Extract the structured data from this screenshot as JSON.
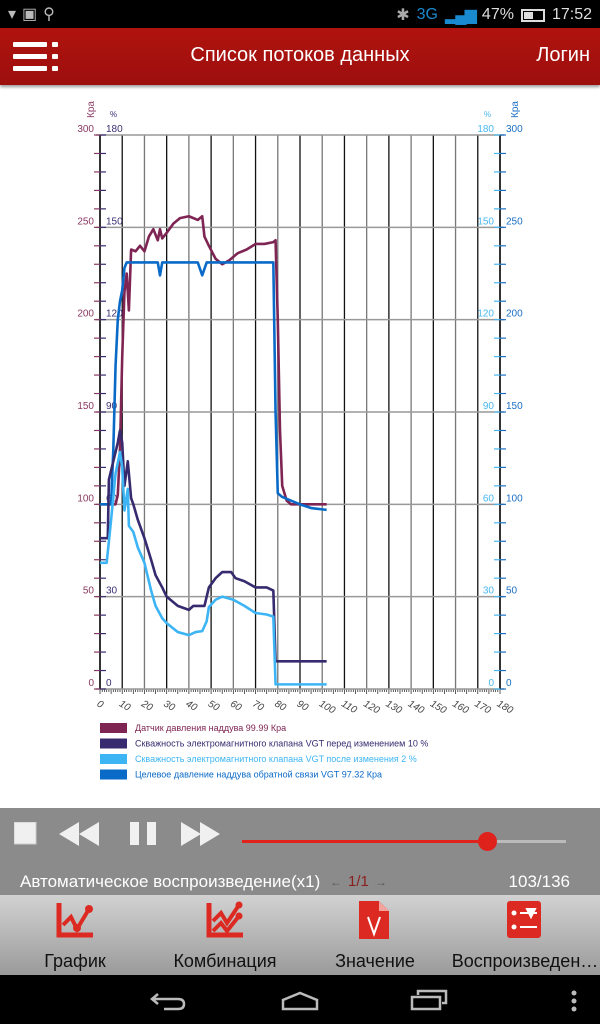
{
  "status_bar": {
    "network": "3G",
    "battery": "47%",
    "time": "17:52",
    "icons": [
      "shield-icon",
      "image-icon",
      "search-icon",
      "bluetooth-icon",
      "signal-icon",
      "battery-icon"
    ]
  },
  "header": {
    "title": "Список потоков данных",
    "login": "Логин",
    "menu_icon": "menu-icon"
  },
  "colors": {
    "header": "#a8120f",
    "accent": "#e0221c",
    "panel": "#8b8b8b"
  },
  "chart_data": {
    "type": "line",
    "left_axes": [
      {
        "unit": "Кра",
        "ticks": [
          300,
          250,
          200,
          150,
          100,
          50,
          0
        ],
        "range": [
          0,
          300
        ],
        "color": "#8a3a63"
      },
      {
        "unit": "%",
        "ticks": [
          180,
          150,
          120,
          90,
          60,
          30,
          0
        ],
        "range": [
          0,
          180
        ],
        "color": "#3b2f73"
      }
    ],
    "right_axes": [
      {
        "unit": "%",
        "ticks": [
          180,
          150,
          120,
          90,
          60,
          30,
          0
        ],
        "range": [
          0,
          180
        ],
        "color": "#4ab8f0"
      },
      {
        "unit": "Кра",
        "ticks": [
          300,
          250,
          200,
          150,
          100,
          50,
          0
        ],
        "range": [
          0,
          300
        ],
        "color": "#1a6fc4"
      }
    ],
    "x_ticks": [
      0,
      10,
      20,
      30,
      40,
      50,
      60,
      70,
      80,
      90,
      100,
      110,
      120,
      130,
      140,
      150,
      160,
      170,
      180
    ],
    "xlim": [
      0,
      180
    ],
    "grid": true,
    "legend_position": "bottom-left",
    "series": [
      {
        "name": "Датчик давления наддува 99.99 Кра",
        "color": "#7e2553",
        "axis": "kpa",
        "points": [
          [
            0,
            100
          ],
          [
            7,
            100
          ],
          [
            8,
            105
          ],
          [
            9,
            130
          ],
          [
            10,
            180
          ],
          [
            11,
            215
          ],
          [
            12,
            225
          ],
          [
            13,
            205
          ],
          [
            14,
            238
          ],
          [
            16,
            237
          ],
          [
            18,
            240
          ],
          [
            20,
            237
          ],
          [
            22,
            245
          ],
          [
            24,
            249
          ],
          [
            26,
            243
          ],
          [
            27,
            249
          ],
          [
            28,
            244
          ],
          [
            30,
            247
          ],
          [
            33,
            252
          ],
          [
            36,
            255
          ],
          [
            40,
            256
          ],
          [
            44,
            254
          ],
          [
            46,
            256
          ],
          [
            47,
            245
          ],
          [
            49,
            240
          ],
          [
            52,
            233
          ],
          [
            55,
            230
          ],
          [
            58,
            232
          ],
          [
            62,
            236
          ],
          [
            66,
            238
          ],
          [
            70,
            241
          ],
          [
            74,
            241
          ],
          [
            78,
            242
          ],
          [
            79,
            243
          ],
          [
            80,
            200
          ],
          [
            81,
            140
          ],
          [
            82,
            110
          ],
          [
            84,
            102
          ],
          [
            86,
            100
          ],
          [
            90,
            100
          ],
          [
            102,
            100
          ]
        ]
      },
      {
        "name": "Скважность электромагнитного клапана VGT перед изменением 10 %",
        "color": "#372a6e",
        "axis": "pct",
        "points": [
          [
            0,
            49
          ],
          [
            3.5,
            49
          ],
          [
            4,
            68
          ],
          [
            6,
            74
          ],
          [
            8,
            80
          ],
          [
            9,
            84
          ],
          [
            10,
            80
          ],
          [
            11,
            66
          ],
          [
            12.5,
            74
          ],
          [
            14,
            62
          ],
          [
            15,
            60
          ],
          [
            17,
            55
          ],
          [
            20,
            49
          ],
          [
            23,
            42
          ],
          [
            25,
            37
          ],
          [
            28,
            33
          ],
          [
            30,
            30
          ],
          [
            35,
            27
          ],
          [
            40,
            25.7
          ],
          [
            42,
            27
          ],
          [
            47,
            27
          ],
          [
            49,
            33
          ],
          [
            52,
            36
          ],
          [
            55,
            38
          ],
          [
            59,
            38
          ],
          [
            61,
            36
          ],
          [
            65,
            35
          ],
          [
            70,
            33
          ],
          [
            75,
            33
          ],
          [
            78,
            32
          ],
          [
            79,
            9
          ],
          [
            102,
            9
          ]
        ]
      },
      {
        "name": "Скважность электромагнитного клапана VGT после изменения 2 %",
        "color": "#3db5f5",
        "axis": "pct",
        "points": [
          [
            0,
            41
          ],
          [
            3,
            41
          ],
          [
            5,
            55
          ],
          [
            7,
            70
          ],
          [
            9,
            77
          ],
          [
            10,
            72
          ],
          [
            11,
            58
          ],
          [
            12.5,
            65
          ],
          [
            13,
            53
          ],
          [
            15,
            51
          ],
          [
            17,
            46
          ],
          [
            20,
            41
          ],
          [
            23,
            32
          ],
          [
            25,
            27
          ],
          [
            28,
            23
          ],
          [
            30,
            21.4
          ],
          [
            35,
            18.5
          ],
          [
            40,
            17.5
          ],
          [
            43,
            18.5
          ],
          [
            46,
            18.8
          ],
          [
            48,
            22
          ],
          [
            49,
            26.6
          ],
          [
            52,
            29
          ],
          [
            55,
            30
          ],
          [
            60,
            29
          ],
          [
            65,
            27
          ],
          [
            70,
            24.7
          ],
          [
            75,
            24.2
          ],
          [
            78,
            23.5
          ],
          [
            79,
            1.5
          ],
          [
            102,
            1.5
          ]
        ]
      },
      {
        "name": "Целевое давление наддува обратной связи VGT 97.32 Кра",
        "color": "#0a6ac8",
        "axis": "kpa",
        "points": [
          [
            0,
            100
          ],
          [
            5,
            100
          ],
          [
            6,
            130
          ],
          [
            7,
            175
          ],
          [
            8,
            200
          ],
          [
            9,
            210
          ],
          [
            10,
            216
          ],
          [
            11,
            228
          ],
          [
            12,
            231
          ],
          [
            26,
            231
          ],
          [
            27,
            224
          ],
          [
            28,
            231
          ],
          [
            44,
            231
          ],
          [
            46,
            224
          ],
          [
            48,
            231
          ],
          [
            78,
            231
          ],
          [
            79,
            150
          ],
          [
            80,
            106
          ],
          [
            82,
            104
          ],
          [
            86,
            102
          ],
          [
            90,
            100
          ],
          [
            95,
            98
          ],
          [
            102,
            97
          ]
        ]
      }
    ]
  },
  "player": {
    "position": 103,
    "total": 136,
    "progress_fraction": 0.757,
    "auto_label": "Автоматическое воспроизведение(x1)",
    "count_label": "103/136",
    "page": "1/1"
  },
  "tabs": [
    {
      "label": "График",
      "icon": "line-chart-icon"
    },
    {
      "label": "Комбинация",
      "icon": "combined-chart-icon"
    },
    {
      "label": "Значение",
      "icon": "value-document-icon"
    },
    {
      "label": "Воспроизведен…",
      "icon": "playback-icon"
    }
  ],
  "nav": {
    "icons": [
      "back-icon",
      "home-icon",
      "recent-apps-icon",
      "overflow-menu-icon"
    ]
  }
}
